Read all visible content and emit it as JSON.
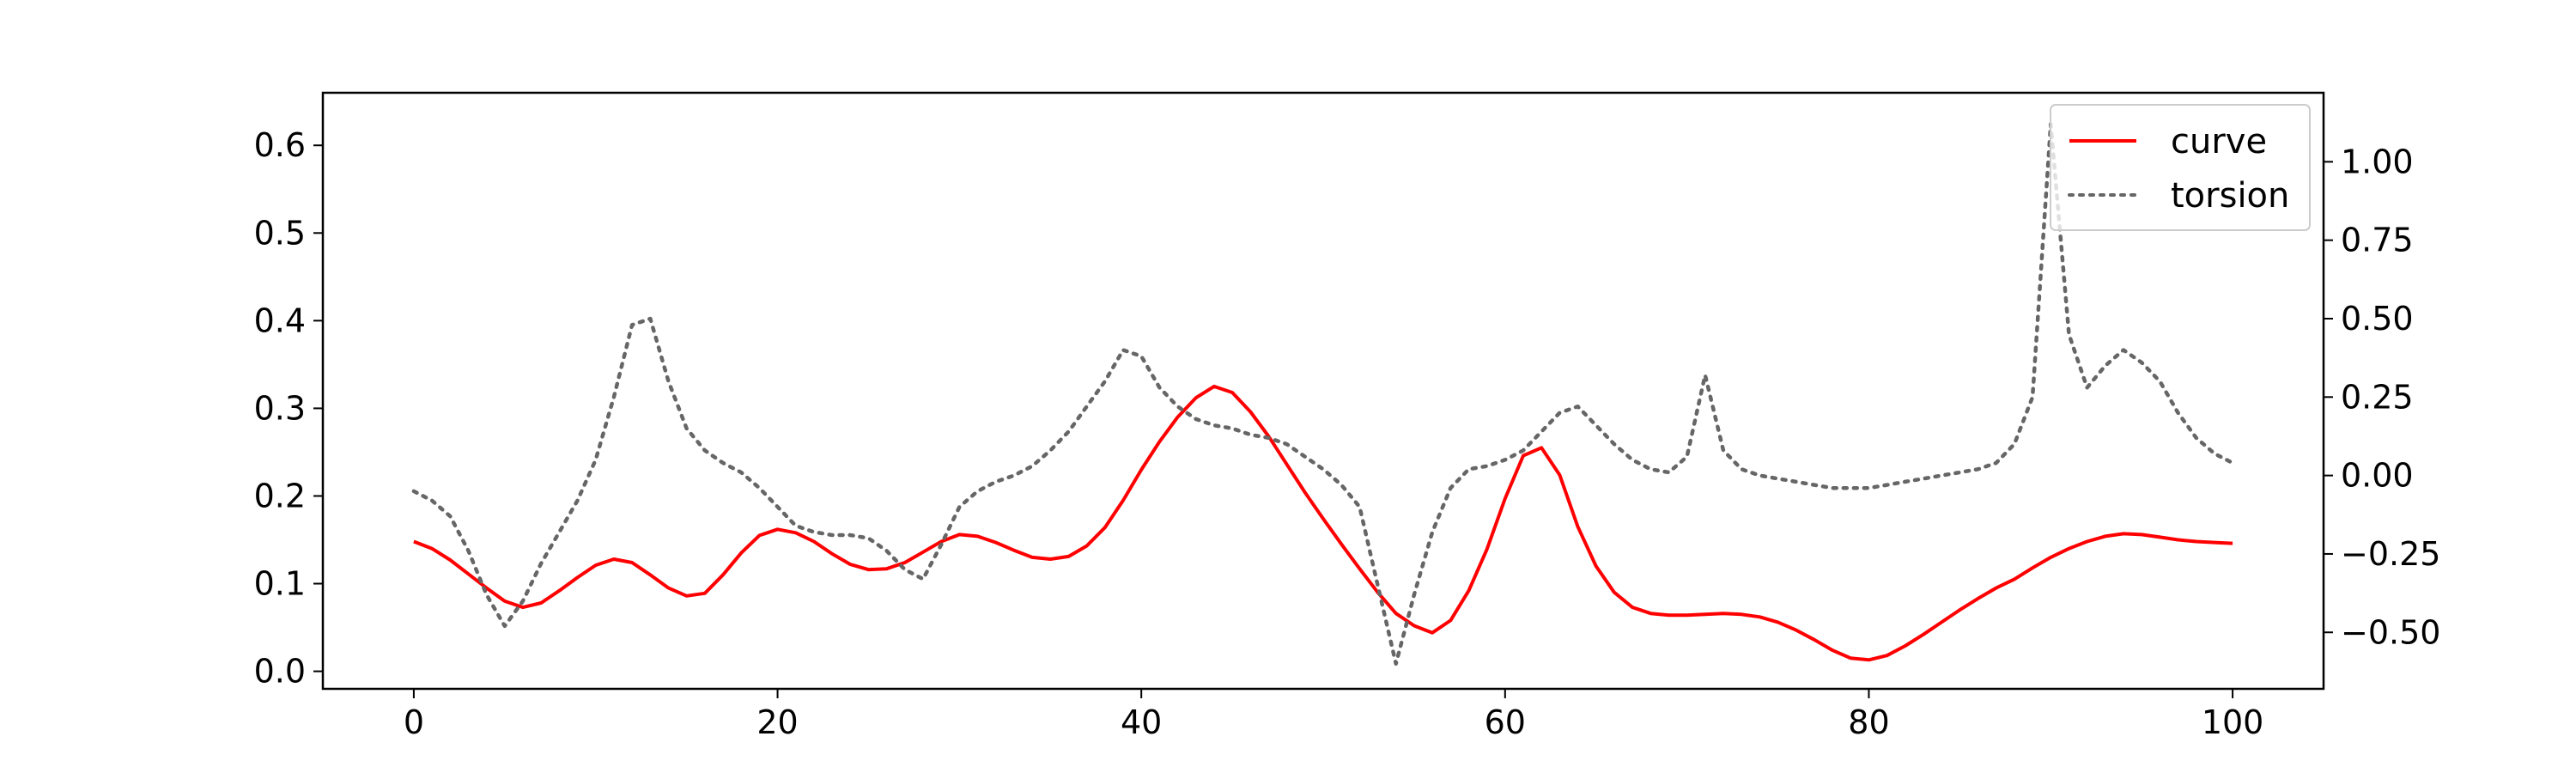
{
  "chart_data": {
    "type": "line",
    "title": "",
    "xlabel": "",
    "ylabel": "",
    "y2label": "",
    "grid": false,
    "legend": {
      "placement": "top-right",
      "entries": [
        "curve",
        "torsion"
      ]
    },
    "xlim": [
      -5,
      105
    ],
    "ylim": [
      -0.02,
      0.66
    ],
    "y2lim": [
      -0.68,
      1.22
    ],
    "xticks": [
      0,
      20,
      40,
      60,
      80,
      100
    ],
    "xtick_labels": [
      "0",
      "20",
      "40",
      "60",
      "80",
      "100"
    ],
    "yticks": [
      0.0,
      0.1,
      0.2,
      0.3,
      0.4,
      0.5,
      0.6
    ],
    "ytick_labels": [
      "0.0",
      "0.1",
      "0.2",
      "0.3",
      "0.4",
      "0.5",
      "0.6"
    ],
    "y2ticks": [
      -0.5,
      -0.25,
      0.0,
      0.25,
      0.5,
      0.75,
      1.0
    ],
    "y2tick_labels": [
      "−0.50",
      "−0.25",
      "0.00",
      "0.25",
      "0.50",
      "0.75",
      "1.00"
    ],
    "series": [
      {
        "name": "curve",
        "axis": "left",
        "color": "#ff0000",
        "style": "solid",
        "x": [
          0,
          1,
          2,
          3,
          4,
          5,
          6,
          7,
          8,
          9,
          10,
          11,
          12,
          13,
          14,
          15,
          16,
          17,
          18,
          19,
          20,
          21,
          22,
          23,
          24,
          25,
          26,
          27,
          28,
          29,
          30,
          31,
          32,
          33,
          34,
          35,
          36,
          37,
          38,
          39,
          40,
          41,
          42,
          43,
          44,
          45,
          46,
          47,
          48,
          49,
          50,
          51,
          52,
          53,
          54,
          55,
          56,
          57,
          58,
          59,
          60,
          61,
          62,
          63,
          64,
          65,
          66,
          67,
          68,
          69,
          70,
          71,
          72,
          73,
          74,
          75,
          76,
          77,
          78,
          79,
          80,
          81,
          82,
          83,
          84,
          85,
          86,
          87,
          88,
          89,
          90,
          91,
          92,
          93,
          94,
          95,
          96,
          97,
          98,
          99,
          100
        ],
        "y": [
          0.148,
          0.14,
          0.127,
          0.111,
          0.095,
          0.08,
          0.073,
          0.078,
          0.092,
          0.107,
          0.121,
          0.128,
          0.124,
          0.11,
          0.095,
          0.086,
          0.089,
          0.11,
          0.135,
          0.155,
          0.162,
          0.158,
          0.148,
          0.134,
          0.122,
          0.116,
          0.117,
          0.124,
          0.136,
          0.148,
          0.156,
          0.154,
          0.147,
          0.138,
          0.13,
          0.128,
          0.131,
          0.143,
          0.164,
          0.195,
          0.23,
          0.262,
          0.29,
          0.312,
          0.325,
          0.318,
          0.296,
          0.268,
          0.236,
          0.204,
          0.174,
          0.145,
          0.117,
          0.09,
          0.066,
          0.052,
          0.044,
          0.058,
          0.092,
          0.139,
          0.197,
          0.246,
          0.255,
          0.224,
          0.165,
          0.12,
          0.09,
          0.073,
          0.066,
          0.064,
          0.064,
          0.065,
          0.066,
          0.065,
          0.062,
          0.056,
          0.047,
          0.036,
          0.024,
          0.015,
          0.013,
          0.018,
          0.029,
          0.042,
          0.056,
          0.07,
          0.083,
          0.095,
          0.105,
          0.118,
          0.13,
          0.14,
          0.148,
          0.154,
          0.157,
          0.156,
          0.153,
          0.15,
          0.148,
          0.147,
          0.146
        ]
      },
      {
        "name": "torsion",
        "axis": "right",
        "color": "#666666",
        "style": "dotted",
        "x": [
          0,
          1,
          2,
          3,
          4,
          5,
          6,
          7,
          8,
          9,
          10,
          11,
          12,
          13,
          14,
          15,
          16,
          17,
          18,
          19,
          20,
          21,
          22,
          23,
          24,
          25,
          26,
          27,
          28,
          29,
          30,
          31,
          32,
          33,
          34,
          35,
          36,
          37,
          38,
          39,
          40,
          41,
          42,
          43,
          44,
          45,
          46,
          47,
          48,
          49,
          50,
          51,
          52,
          53,
          54,
          55,
          56,
          57,
          58,
          59,
          60,
          61,
          62,
          63,
          64,
          65,
          66,
          67,
          68,
          69,
          70,
          71,
          72,
          73,
          74,
          75,
          76,
          77,
          78,
          79,
          80,
          81,
          82,
          83,
          84,
          85,
          86,
          87,
          88,
          89,
          90,
          91,
          92,
          93,
          94,
          95,
          96,
          97,
          98,
          99,
          100
        ],
        "y": [
          -0.05,
          -0.08,
          -0.13,
          -0.24,
          -0.38,
          -0.48,
          -0.4,
          -0.28,
          -0.18,
          -0.08,
          0.05,
          0.25,
          0.48,
          0.5,
          0.3,
          0.15,
          0.08,
          0.04,
          0.01,
          -0.04,
          -0.1,
          -0.16,
          -0.18,
          -0.19,
          -0.19,
          -0.2,
          -0.24,
          -0.3,
          -0.33,
          -0.22,
          -0.1,
          -0.05,
          -0.02,
          0.0,
          0.03,
          0.08,
          0.14,
          0.22,
          0.3,
          0.4,
          0.38,
          0.28,
          0.22,
          0.18,
          0.16,
          0.15,
          0.13,
          0.12,
          0.1,
          0.06,
          0.02,
          -0.03,
          -0.1,
          -0.35,
          -0.6,
          -0.38,
          -0.18,
          -0.04,
          0.02,
          0.03,
          0.05,
          0.08,
          0.14,
          0.2,
          0.22,
          0.16,
          0.1,
          0.05,
          0.02,
          0.01,
          0.06,
          0.32,
          0.08,
          0.02,
          0.0,
          -0.01,
          -0.02,
          -0.03,
          -0.04,
          -0.04,
          -0.04,
          -0.03,
          -0.02,
          -0.01,
          0.0,
          0.01,
          0.02,
          0.04,
          0.1,
          0.25,
          1.12,
          0.45,
          0.28,
          0.35,
          0.4,
          0.36,
          0.3,
          0.2,
          0.12,
          0.07,
          0.04
        ]
      }
    ]
  }
}
